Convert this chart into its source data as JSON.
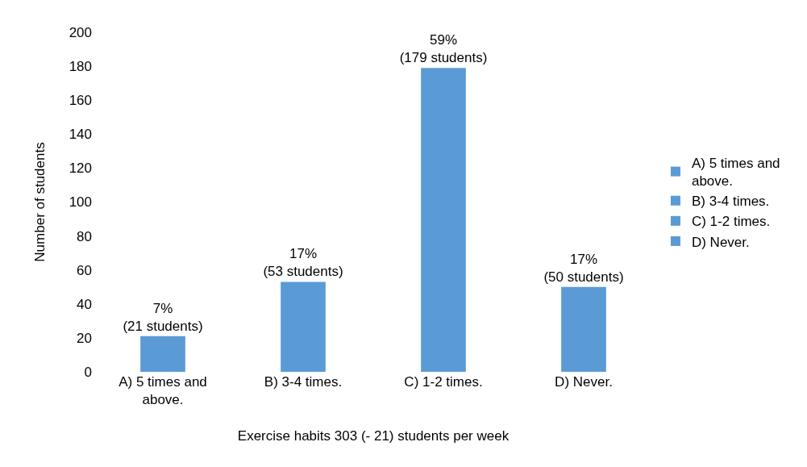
{
  "chart_data": {
    "type": "bar",
    "xlabel": "Exercise habits 303 (- 21) students per week",
    "ylabel": "Number of students",
    "categories": [
      "A) 5 times and above.",
      "B) 3-4 times.",
      "C) 1-2 times.",
      "D) Never."
    ],
    "series": [
      {
        "name": "A) 5 times and above.",
        "color": "#5b9bd5",
        "values": [
          21,
          null,
          null,
          null
        ],
        "value_labels": [
          "7%\n(21 students)",
          null,
          null,
          null
        ]
      },
      {
        "name": "B) 3-4 times.",
        "color": "#5b9bd5",
        "values": [
          null,
          53,
          null,
          null
        ],
        "value_labels": [
          null,
          "17%\n(53 students)",
          null,
          null
        ]
      },
      {
        "name": "C) 1-2 times.",
        "color": "#5b9bd5",
        "values": [
          null,
          null,
          179,
          null
        ],
        "value_labels": [
          null,
          null,
          "59%\n(179 students)",
          null
        ]
      },
      {
        "name": "D) Never.",
        "color": "#5b9bd5",
        "values": [
          null,
          null,
          null,
          50
        ],
        "value_labels": [
          null,
          null,
          null,
          "17%\n(50 students)"
        ]
      }
    ],
    "ylim": [
      0,
      200
    ],
    "yticks": [
      0,
      20,
      40,
      60,
      80,
      100,
      120,
      140,
      160,
      180,
      200
    ],
    "legend": "right"
  }
}
